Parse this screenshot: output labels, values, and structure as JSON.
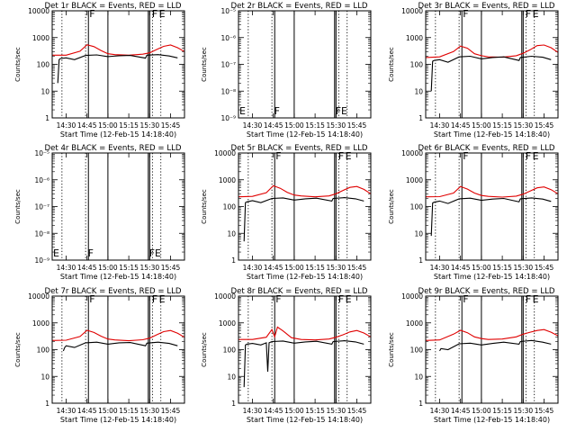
{
  "figure": {
    "background": "#ffffff",
    "colors": {
      "events": "#000000",
      "lld": "#e00000",
      "axes": "#000000"
    }
  },
  "chart_data": [
    {
      "type": "line",
      "title": "Det 1r BLACK = Events, RED = LLD",
      "xlabel": "Start Time (12-Feb-15 14:18:40)",
      "ylabel": "Counts/sec",
      "yscale": "log",
      "ylim": [
        1,
        10000
      ],
      "yticks": [
        1,
        10,
        100,
        1000,
        10000
      ],
      "yticklabels": [
        "1",
        "10",
        "100",
        "1000",
        "10000"
      ],
      "xlim": [
        "14:20",
        "15:55"
      ],
      "xticks": [
        "14:30",
        "14:45",
        "15:00",
        "15:15",
        "15:30",
        "15:45"
      ],
      "dotted_lines": [
        "14:27",
        "14:44",
        "15:32",
        "15:38"
      ],
      "solid_lines": [
        "14:46",
        "15:00",
        "15:29",
        "15:30"
      ],
      "markers": [
        {
          "label": "F",
          "time": "14:46"
        },
        {
          "label": "F",
          "time": "15:31"
        },
        {
          "label": "E",
          "time": "15:36"
        }
      ],
      "series": [
        {
          "color": "#e00000",
          "x": [
            "14:20",
            "14:30",
            "14:40",
            "14:45",
            "14:50",
            "14:55",
            "15:00",
            "15:05",
            "15:15",
            "15:25",
            "15:30",
            "15:35",
            "15:40",
            "15:45",
            "15:50",
            "15:55"
          ],
          "y": [
            220,
            220,
            310,
            540,
            460,
            330,
            250,
            230,
            220,
            240,
            270,
            360,
            470,
            530,
            420,
            300
          ]
        },
        {
          "color": "#000000",
          "x": [
            "14:24",
            "14:25",
            "14:26",
            "14:30",
            "14:36",
            "14:44",
            "14:52",
            "15:00",
            "15:08",
            "15:16",
            "15:27",
            "15:28",
            "15:36",
            "15:44",
            "15:50"
          ],
          "y": [
            20,
            150,
            165,
            175,
            150,
            215,
            225,
            195,
            210,
            215,
            170,
            220,
            230,
            205,
            175
          ]
        }
      ]
    },
    {
      "type": "line",
      "title": "Det 2r BLACK = Events, RED = LLD",
      "xlabel": "Start Time (12-Feb-15 14:18:40)",
      "ylabel": "Counts/sec",
      "yscale": "log",
      "ylim": [
        1e-09,
        1e-05
      ],
      "yticks": [
        1e-09,
        1e-08,
        1e-07,
        1e-06,
        1e-05
      ],
      "yticklabels": [
        "10⁻⁹",
        "10⁻⁸",
        "10⁻⁷",
        "10⁻⁶",
        "10⁻⁵"
      ],
      "xlim": [
        "14:20",
        "15:55"
      ],
      "xticks": [
        "14:30",
        "14:45",
        "15:00",
        "15:15",
        "15:30",
        "15:45"
      ],
      "dotted_lines": [
        "14:27",
        "14:44",
        "15:32",
        "15:38"
      ],
      "solid_lines": [
        "14:46",
        "15:00",
        "15:29",
        "15:30"
      ],
      "markers": [
        {
          "label": "E",
          "time": "14:20"
        },
        {
          "label": "F",
          "time": "14:45"
        },
        {
          "label": "F",
          "time": "15:29"
        },
        {
          "label": "E",
          "time": "15:33"
        }
      ],
      "series": []
    },
    {
      "type": "line",
      "title": "Det 3r BLACK = Events, RED = LLD",
      "xlabel": "Start Time (12-Feb-15 14:18:40)",
      "ylabel": "Counts/sec",
      "yscale": "log",
      "ylim": [
        1,
        10000
      ],
      "yticks": [
        1,
        10,
        100,
        1000,
        10000
      ],
      "yticklabels": [
        "1",
        "10",
        "100",
        "1000",
        "10000"
      ],
      "xlim": [
        "14:20",
        "15:55"
      ],
      "xticks": [
        "14:30",
        "14:45",
        "15:00",
        "15:15",
        "15:30",
        "15:45"
      ],
      "dotted_lines": [
        "14:27",
        "14:44",
        "15:32",
        "15:38"
      ],
      "solid_lines": [
        "14:46",
        "15:00",
        "15:29",
        "15:30"
      ],
      "markers": [
        {
          "label": "F",
          "time": "14:46"
        },
        {
          "label": "F",
          "time": "15:31"
        },
        {
          "label": "E",
          "time": "15:36"
        }
      ],
      "series": [
        {
          "color": "#e00000",
          "x": [
            "14:20",
            "14:30",
            "14:40",
            "14:45",
            "14:50",
            "14:55",
            "15:00",
            "15:05",
            "15:15",
            "15:25",
            "15:30",
            "15:35",
            "15:40",
            "15:45",
            "15:50",
            "15:55"
          ],
          "y": [
            180,
            190,
            300,
            480,
            400,
            250,
            210,
            190,
            185,
            210,
            260,
            350,
            500,
            530,
            420,
            280
          ]
        },
        {
          "color": "#000000",
          "x": [
            "14:24",
            "14:25",
            "14:26",
            "14:30",
            "14:36",
            "14:44",
            "14:52",
            "15:00",
            "15:08",
            "15:16",
            "15:27",
            "15:28",
            "15:36",
            "15:44",
            "15:50"
          ],
          "y": [
            10,
            130,
            140,
            150,
            120,
            190,
            200,
            160,
            180,
            190,
            140,
            180,
            200,
            185,
            150
          ]
        }
      ]
    },
    {
      "type": "line",
      "title": "Det 4r BLACK = Events, RED = LLD",
      "xlabel": "Start Time (12-Feb-15 14:18:40)",
      "ylabel": "Counts/sec",
      "yscale": "log",
      "ylim": [
        1e-09,
        1e-05
      ],
      "yticks": [
        1e-09,
        1e-08,
        1e-07,
        1e-06,
        1e-05
      ],
      "yticklabels": [
        "10⁻⁹",
        "10⁻⁸",
        "10⁻⁷",
        "10⁻⁶",
        "10⁻⁵"
      ],
      "xlim": [
        "14:20",
        "15:55"
      ],
      "xticks": [
        "14:30",
        "14:45",
        "15:00",
        "15:15",
        "15:30",
        "15:45"
      ],
      "dotted_lines": [
        "14:27",
        "14:44",
        "15:32",
        "15:38"
      ],
      "solid_lines": [
        "14:46",
        "15:00",
        "15:29",
        "15:30"
      ],
      "markers": [
        {
          "label": "E",
          "time": "14:20"
        },
        {
          "label": "F",
          "time": "14:45"
        },
        {
          "label": "F",
          "time": "15:29"
        },
        {
          "label": "E",
          "time": "15:33"
        }
      ],
      "series": []
    },
    {
      "type": "line",
      "title": "Det 5r BLACK = Events, RED = LLD",
      "xlabel": "Start Time (12-Feb-15 14:18:40)",
      "ylabel": "Counts/sec",
      "yscale": "log",
      "ylim": [
        1,
        10000
      ],
      "yticks": [
        1,
        10,
        100,
        1000,
        10000
      ],
      "yticklabels": [
        "1",
        "10",
        "100",
        "1000",
        "10000"
      ],
      "xlim": [
        "14:20",
        "15:55"
      ],
      "xticks": [
        "14:30",
        "14:45",
        "15:00",
        "15:15",
        "15:30",
        "15:45"
      ],
      "dotted_lines": [
        "14:27",
        "14:44",
        "15:32",
        "15:38"
      ],
      "solid_lines": [
        "14:46",
        "15:00",
        "15:29",
        "15:30"
      ],
      "markers": [
        {
          "label": "F",
          "time": "14:46"
        },
        {
          "label": "F",
          "time": "15:31"
        },
        {
          "label": "E",
          "time": "15:36"
        }
      ],
      "series": [
        {
          "color": "#e00000",
          "x": [
            "14:20",
            "14:30",
            "14:40",
            "14:45",
            "14:50",
            "14:55",
            "15:00",
            "15:05",
            "15:15",
            "15:25",
            "15:30",
            "15:35",
            "15:40",
            "15:45",
            "15:50",
            "15:55"
          ],
          "y": [
            230,
            240,
            330,
            600,
            480,
            340,
            270,
            250,
            230,
            250,
            300,
            400,
            520,
            560,
            440,
            300
          ]
        },
        {
          "color": "#000000",
          "x": [
            "14:24",
            "14:25",
            "14:26",
            "14:30",
            "14:36",
            "14:44",
            "14:52",
            "15:00",
            "15:08",
            "15:16",
            "15:27",
            "15:28",
            "15:36",
            "15:44",
            "15:50"
          ],
          "y": [
            5,
            140,
            150,
            165,
            140,
            200,
            210,
            175,
            195,
            205,
            160,
            200,
            215,
            195,
            160
          ]
        }
      ]
    },
    {
      "type": "line",
      "title": "Det 6r BLACK = Events, RED = LLD",
      "xlabel": "Start Time (12-Feb-15 14:18:40)",
      "ylabel": "Counts/sec",
      "yscale": "log",
      "ylim": [
        1,
        10000
      ],
      "yticks": [
        1,
        10,
        100,
        1000,
        10000
      ],
      "yticklabels": [
        "1",
        "10",
        "100",
        "1000",
        "10000"
      ],
      "xlim": [
        "14:20",
        "15:55"
      ],
      "xticks": [
        "14:30",
        "14:45",
        "15:00",
        "15:15",
        "15:30",
        "15:45"
      ],
      "dotted_lines": [
        "14:27",
        "14:44",
        "15:32",
        "15:38"
      ],
      "solid_lines": [
        "14:46",
        "15:00",
        "15:29",
        "15:30"
      ],
      "markers": [
        {
          "label": "F",
          "time": "14:46"
        },
        {
          "label": "F",
          "time": "15:31"
        },
        {
          "label": "E",
          "time": "15:36"
        }
      ],
      "series": [
        {
          "color": "#e00000",
          "x": [
            "14:20",
            "14:30",
            "14:40",
            "14:45",
            "14:50",
            "14:55",
            "15:00",
            "15:05",
            "15:15",
            "15:25",
            "15:30",
            "15:35",
            "15:40",
            "15:45",
            "15:50",
            "15:55"
          ],
          "y": [
            230,
            235,
            320,
            560,
            450,
            320,
            260,
            240,
            225,
            245,
            290,
            380,
            500,
            540,
            430,
            300
          ]
        },
        {
          "color": "#000000",
          "x": [
            "14:24",
            "14:25",
            "14:26",
            "14:30",
            "14:36",
            "14:44",
            "14:52",
            "15:00",
            "15:08",
            "15:16",
            "15:27",
            "15:28",
            "15:36",
            "15:44",
            "15:50"
          ],
          "y": [
            8,
            135,
            145,
            160,
            130,
            195,
            205,
            170,
            190,
            200,
            150,
            195,
            210,
            190,
            155
          ]
        }
      ]
    },
    {
      "type": "line",
      "title": "Det 7r BLACK = Events, RED = LLD",
      "xlabel": "Start Time (12-Feb-15 14:18:40)",
      "ylabel": "Counts/sec",
      "yscale": "log",
      "ylim": [
        1,
        10000
      ],
      "yticks": [
        1,
        10,
        100,
        1000,
        10000
      ],
      "yticklabels": [
        "1",
        "10",
        "100",
        "1000",
        "10000"
      ],
      "xlim": [
        "14:20",
        "15:55"
      ],
      "xticks": [
        "14:30",
        "14:45",
        "15:00",
        "15:15",
        "15:30",
        "15:45"
      ],
      "dotted_lines": [
        "14:27",
        "14:44",
        "15:32",
        "15:38"
      ],
      "solid_lines": [
        "14:46",
        "15:00",
        "15:29",
        "15:30"
      ],
      "markers": [
        {
          "label": "F",
          "time": "14:46"
        },
        {
          "label": "F",
          "time": "15:31"
        },
        {
          "label": "E",
          "time": "15:36"
        }
      ],
      "series": [
        {
          "color": "#e00000",
          "x": [
            "14:20",
            "14:30",
            "14:40",
            "14:45",
            "14:50",
            "14:55",
            "15:00",
            "15:05",
            "15:15",
            "15:25",
            "15:30",
            "15:35",
            "15:40",
            "15:45",
            "15:50",
            "15:55"
          ],
          "y": [
            220,
            225,
            310,
            530,
            440,
            320,
            250,
            230,
            215,
            235,
            270,
            360,
            470,
            520,
            410,
            290
          ]
        },
        {
          "color": "#000000",
          "x": [
            "14:28",
            "14:29",
            "14:30",
            "14:36",
            "14:44",
            "14:52",
            "15:00",
            "15:08",
            "15:16",
            "15:27",
            "15:28",
            "15:36",
            "15:44",
            "15:50"
          ],
          "y": [
            90,
            120,
            140,
            120,
            180,
            190,
            160,
            180,
            185,
            140,
            175,
            190,
            170,
            140
          ]
        }
      ]
    },
    {
      "type": "line",
      "title": "Det 8r BLACK = Events, RED = LLD",
      "xlabel": "Start Time (12-Feb-15 14:18:40)",
      "ylabel": "Counts/sec",
      "yscale": "log",
      "ylim": [
        1,
        10000
      ],
      "yticks": [
        1,
        10,
        100,
        1000,
        10000
      ],
      "yticklabels": [
        "1",
        "10",
        "100",
        "1000",
        "10000"
      ],
      "xlim": [
        "14:20",
        "15:55"
      ],
      "xticks": [
        "14:30",
        "14:45",
        "15:00",
        "15:15",
        "15:30",
        "15:45"
      ],
      "dotted_lines": [
        "14:27",
        "14:44",
        "15:32",
        "15:38"
      ],
      "solid_lines": [
        "14:46",
        "15:00",
        "15:29",
        "15:30"
      ],
      "markers": [
        {
          "label": "F",
          "time": "14:46"
        },
        {
          "label": "F",
          "time": "15:31"
        },
        {
          "label": "E",
          "time": "15:36"
        }
      ],
      "series": [
        {
          "color": "#e00000",
          "x": [
            "14:20",
            "14:30",
            "14:40",
            "14:44",
            "14:46",
            "14:48",
            "14:52",
            "14:58",
            "15:05",
            "15:15",
            "15:25",
            "15:30",
            "15:35",
            "15:40",
            "15:45",
            "15:50",
            "15:55"
          ],
          "y": [
            240,
            240,
            290,
            560,
            300,
            700,
            500,
            280,
            240,
            230,
            250,
            290,
            360,
            460,
            520,
            420,
            300
          ]
        },
        {
          "color": "#000000",
          "x": [
            "14:24",
            "14:25",
            "14:26",
            "14:30",
            "14:36",
            "14:40",
            "14:41",
            "14:42",
            "14:44",
            "14:52",
            "15:00",
            "15:08",
            "15:16",
            "15:27",
            "15:28",
            "15:36",
            "15:44",
            "15:50"
          ],
          "y": [
            4,
            150,
            160,
            170,
            150,
            180,
            15,
            180,
            200,
            210,
            175,
            195,
            205,
            160,
            200,
            215,
            195,
            160
          ]
        }
      ]
    },
    {
      "type": "line",
      "title": "Det 9r BLACK = Events, RED = LLD",
      "xlabel": "Start Time (12-Feb-15 14:18:40)",
      "ylabel": "Counts/sec",
      "yscale": "log",
      "ylim": [
        1,
        10000
      ],
      "yticks": [
        1,
        10,
        100,
        1000,
        10000
      ],
      "yticklabels": [
        "1",
        "10",
        "100",
        "1000",
        "10000"
      ],
      "xlim": [
        "14:20",
        "15:55"
      ],
      "xticks": [
        "14:30",
        "14:45",
        "15:00",
        "15:15",
        "15:30",
        "15:45"
      ],
      "dotted_lines": [
        "14:27",
        "14:44",
        "15:32",
        "15:38"
      ],
      "solid_lines": [
        "14:46",
        "15:00",
        "15:29",
        "15:30"
      ],
      "markers": [
        {
          "label": "F",
          "time": "14:46"
        },
        {
          "label": "F",
          "time": "15:31"
        },
        {
          "label": "E",
          "time": "15:36"
        }
      ],
      "series": [
        {
          "color": "#e00000",
          "x": [
            "14:20",
            "14:30",
            "14:40",
            "14:45",
            "14:50",
            "14:55",
            "15:00",
            "15:05",
            "15:15",
            "15:25",
            "15:30",
            "15:35",
            "15:40",
            "15:45",
            "15:50",
            "15:55"
          ],
          "y": [
            220,
            230,
            380,
            530,
            430,
            300,
            260,
            240,
            250,
            300,
            380,
            450,
            520,
            560,
            450,
            330
          ]
        },
        {
          "color": "#000000",
          "x": [
            "14:30",
            "14:31",
            "14:36",
            "14:44",
            "14:52",
            "15:00",
            "15:08",
            "15:16",
            "15:27",
            "15:28",
            "15:36",
            "15:44",
            "15:50"
          ],
          "y": [
            90,
            110,
            100,
            165,
            175,
            150,
            170,
            190,
            160,
            200,
            220,
            190,
            160
          ]
        }
      ]
    }
  ]
}
